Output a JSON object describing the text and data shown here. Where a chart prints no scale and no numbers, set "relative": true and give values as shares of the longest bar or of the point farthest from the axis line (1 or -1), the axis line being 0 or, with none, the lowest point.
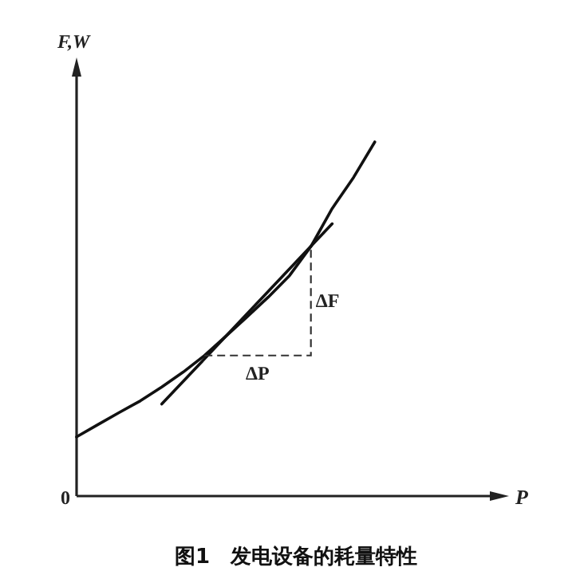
{
  "chart_data": {
    "type": "line",
    "relative": true,
    "title": "图1　发电设备的耗量特性",
    "xlabel": "P",
    "ylabel": "F,W",
    "categories": [
      null,
      null,
      null,
      null,
      null,
      null,
      null,
      null,
      null,
      null,
      null,
      null,
      null,
      null,
      null,
      null,
      null,
      null,
      null,
      null,
      null
    ],
    "series": [
      {
        "color": "#111111",
        "values": [
          0.167,
          0.202,
          0.236,
          0.269,
          0.308,
          0.35,
          0.397,
          0.451,
          0.506,
          0.562,
          0.623,
          0.705,
          0.812,
          0.9,
          1.0,
          null,
          null,
          null,
          null,
          null,
          null
        ]
      },
      {
        "color": "#111111",
        "values": [
          null,
          null,
          null,
          null,
          0.26,
          null,
          null,
          null,
          null,
          null,
          null,
          null,
          0.769,
          null,
          null,
          null,
          null,
          null,
          null,
          null,
          null
        ]
      }
    ],
    "annotations": [
      "0",
      "ΔF",
      "ΔP"
    ]
  }
}
